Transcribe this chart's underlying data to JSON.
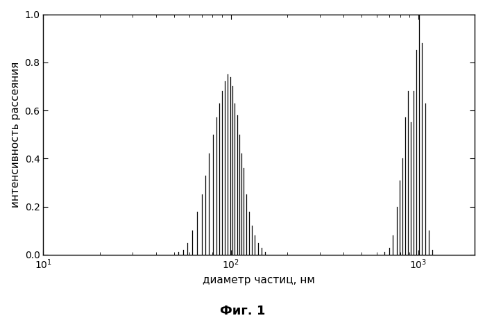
{
  "xlabel": "диаметр частиц, нм",
  "ylabel": "интенсивность рассеяния",
  "caption": "Фиг. 1",
  "xlim": [
    10,
    2000
  ],
  "ylim": [
    0,
    1.0
  ],
  "yticks": [
    0,
    0.2,
    0.4,
    0.6,
    0.8,
    1.0
  ],
  "background_color": "#ffffff",
  "line_color": "#000000",
  "group1_log_positions": [
    1.72,
    1.745,
    1.77,
    1.795,
    1.82,
    1.845,
    1.865,
    1.885,
    1.905,
    1.923,
    1.94,
    1.955,
    1.97,
    1.984,
    1.997,
    2.01,
    2.022,
    2.034,
    2.046,
    2.058,
    2.07,
    2.083,
    2.097,
    2.112,
    2.128,
    2.145,
    2.163,
    2.182
  ],
  "group1_heights": [
    0.01,
    0.02,
    0.05,
    0.1,
    0.18,
    0.25,
    0.33,
    0.42,
    0.5,
    0.57,
    0.63,
    0.68,
    0.72,
    0.75,
    0.74,
    0.7,
    0.63,
    0.58,
    0.5,
    0.42,
    0.36,
    0.25,
    0.18,
    0.12,
    0.08,
    0.05,
    0.03,
    0.01
  ],
  "group2_log_positions": [
    2.82,
    2.845,
    2.865,
    2.885,
    2.9,
    2.915,
    2.93,
    2.945,
    2.96,
    2.975,
    2.99,
    3.005,
    3.02,
    3.037,
    3.055,
    3.075
  ],
  "group2_heights": [
    0.01,
    0.03,
    0.08,
    0.2,
    0.31,
    0.4,
    0.57,
    0.68,
    0.55,
    0.68,
    0.85,
    1.0,
    0.88,
    0.63,
    0.1,
    0.02
  ],
  "fontsize_label": 11,
  "fontsize_caption": 13,
  "fontsize_tick": 10,
  "linewidth": 0.9
}
